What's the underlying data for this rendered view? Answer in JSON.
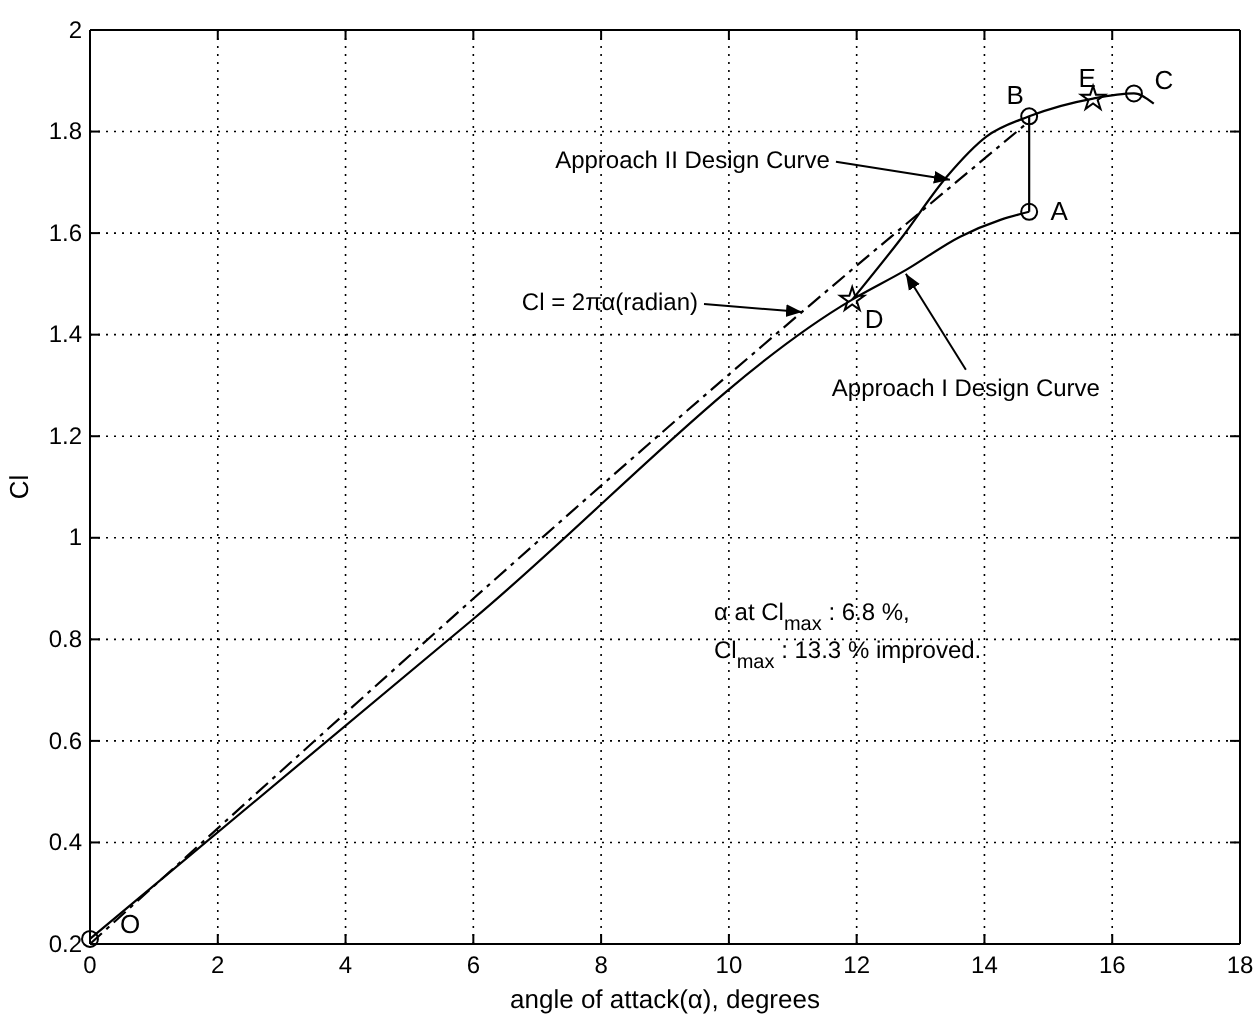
{
  "chart_data": {
    "type": "line",
    "xlabel": "angle of attack(α), degrees",
    "ylabel": "Cl",
    "xlim": [
      0,
      18
    ],
    "xticks": [
      0,
      2,
      4,
      6,
      8,
      10,
      12,
      14,
      16,
      18
    ],
    "ylim": [
      0.2,
      2
    ],
    "yticks": [
      0.2,
      0.4,
      0.6,
      0.8,
      1,
      1.2,
      1.4,
      1.6,
      1.8,
      2
    ],
    "grid": true,
    "series": [
      {
        "type": "line",
        "color": "#000000",
        "line_style": "solid",
        "x": [
          0,
          6,
          11.93,
          12.78,
          13.62,
          14.25,
          14.7
        ],
        "values": [
          0.21,
          0.84,
          1.469,
          1.528,
          1.593,
          1.626,
          1.642
        ]
      },
      {
        "type": "line",
        "color": "#000000",
        "line_style": "solid",
        "x": [
          11.93,
          12.68,
          13.41,
          14.03,
          14.7,
          15.7,
          16.34,
          16.65
        ],
        "values": [
          1.469,
          1.587,
          1.711,
          1.79,
          1.83,
          1.865,
          1.875,
          1.855
        ]
      },
      {
        "type": "line",
        "color": "#000000",
        "line_style": "dashed",
        "x": [
          0,
          11.1,
          14.66
        ],
        "values": [
          0.2,
          1.44,
          1.816
        ]
      },
      {
        "type": "line",
        "color": "#000000",
        "line_style": "solid",
        "x": [
          14.7,
          14.7
        ],
        "values": [
          1.642,
          1.83
        ]
      },
      {
        "type": "scatter",
        "color": "#000000",
        "marker": "circle",
        "x": [
          0,
          14.7,
          14.7,
          16.34
        ],
        "values": [
          0.21,
          1.642,
          1.83,
          1.875
        ]
      },
      {
        "type": "scatter",
        "color": "#000000",
        "marker": "star",
        "x": [
          11.93,
          15.7
        ],
        "values": [
          1.469,
          1.865
        ]
      }
    ],
    "annotations": [
      {
        "text": "Approach II Design Curve",
        "x": 13.46,
        "y": 1.705
      },
      "Cl = 2πα(radian)",
      {
        "text": "Approach I Design Curve",
        "x": 12.77,
        "y": 1.52
      },
      "α at Cl$_{max}$ : 6.8 %,",
      "Cl$_{max}$ : 13.3 % improved.",
      {
        "text": "O",
        "x": 0,
        "y": 0.21
      },
      {
        "text": "A",
        "x": 14.7,
        "y": 1.642
      },
      {
        "text": "B",
        "x": 14.7,
        "y": 1.83
      },
      {
        "text": "C",
        "x": 16.34,
        "y": 1.875
      },
      {
        "text": "D",
        "x": 11.93,
        "y": 1.469
      },
      {
        "text": "E",
        "x": 15.7,
        "y": 1.865
      }
    ]
  }
}
